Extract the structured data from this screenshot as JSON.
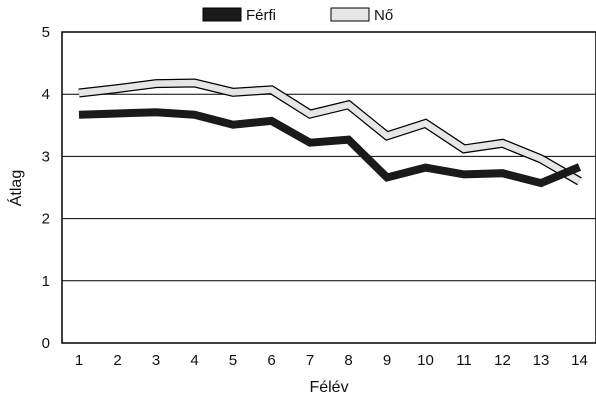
{
  "chart_data": {
    "type": "line",
    "title": "",
    "xlabel": "Félév",
    "ylabel": "Átlag",
    "x": [
      1,
      2,
      3,
      4,
      5,
      6,
      7,
      8,
      9,
      10,
      11,
      12,
      13,
      14
    ],
    "ylim": [
      0,
      5
    ],
    "yticks": [
      0,
      1,
      2,
      3,
      4,
      5
    ],
    "grid": true,
    "legend_position": "top-center",
    "series": [
      {
        "name": "Férfi",
        "color": "#1a1a1a",
        "values": [
          3.67,
          3.69,
          3.71,
          3.67,
          3.51,
          3.57,
          3.22,
          3.27,
          2.66,
          2.82,
          2.71,
          2.73,
          2.57,
          2.83
        ]
      },
      {
        "name": "Nő",
        "color": "#e6e6e6",
        "values": [
          4.02,
          4.09,
          4.17,
          4.18,
          4.03,
          4.07,
          3.68,
          3.83,
          3.33,
          3.53,
          3.12,
          3.21,
          2.96,
          2.6
        ]
      }
    ]
  }
}
